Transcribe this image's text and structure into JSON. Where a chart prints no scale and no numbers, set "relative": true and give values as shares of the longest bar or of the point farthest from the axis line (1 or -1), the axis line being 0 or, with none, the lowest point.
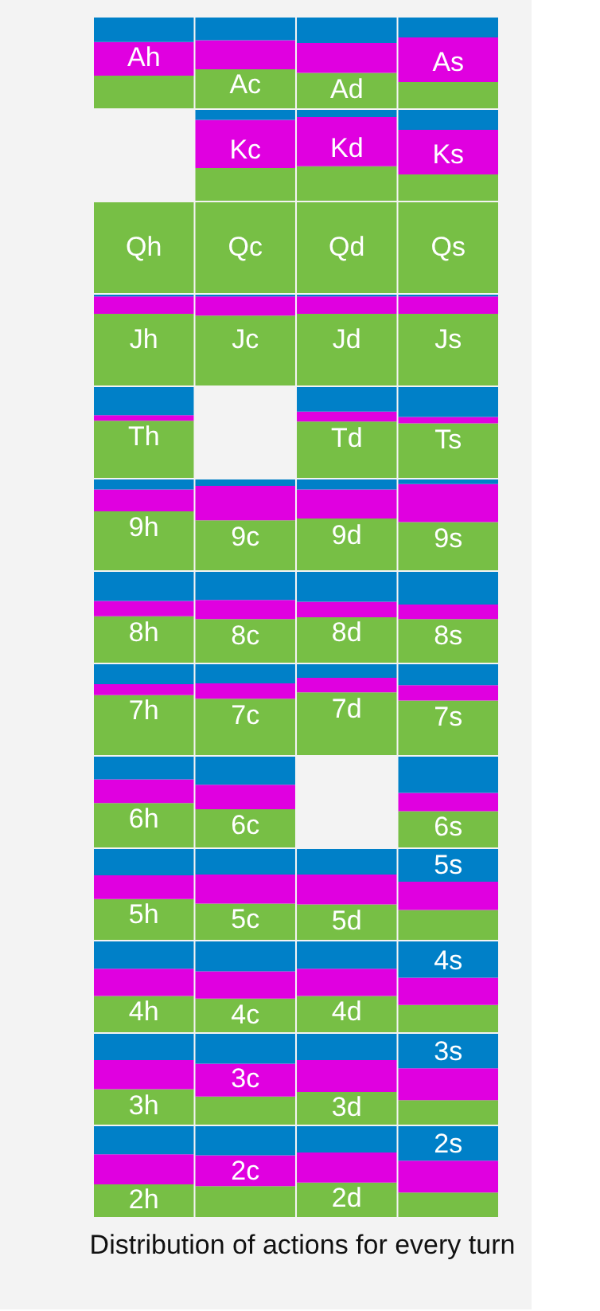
{
  "chart_data": [
    {
      "type": "bar",
      "stacked": true,
      "relative": true,
      "tick_labels": false,
      "legend": false,
      "grid": false,
      "categories": [
        "Ah",
        "Ac",
        "Ad",
        "As"
      ],
      "series": [
        {
          "color": "#77bf45",
          "values": [
            0.36,
            0.43,
            0.39,
            0.29
          ]
        },
        {
          "color": "#e000e0",
          "values": [
            0.37,
            0.32,
            0.33,
            0.49
          ]
        },
        {
          "color": "#0080c8",
          "values": [
            0.27,
            0.25,
            0.28,
            0.22
          ]
        }
      ]
    },
    {
      "type": "bar",
      "stacked": true,
      "relative": true,
      "tick_labels": false,
      "legend": false,
      "grid": false,
      "categories": [
        null,
        "Kc",
        "Kd",
        "Ks"
      ],
      "series": [
        {
          "color": "#77bf45",
          "values": [
            null,
            0.36,
            0.38,
            0.29
          ]
        },
        {
          "color": "#e000e0",
          "values": [
            null,
            0.53,
            0.54,
            0.49
          ]
        },
        {
          "color": "#0080c8",
          "values": [
            null,
            0.11,
            0.08,
            0.22
          ]
        }
      ]
    },
    {
      "type": "bar",
      "stacked": true,
      "relative": true,
      "tick_labels": false,
      "legend": false,
      "grid": false,
      "categories": [
        "Qh",
        "Qc",
        "Qd",
        "Qs"
      ],
      "series": [
        {
          "color": "#77bf45",
          "values": [
            1,
            1,
            1,
            1
          ]
        },
        {
          "color": "#e000e0",
          "values": [
            0,
            0,
            0,
            0
          ]
        },
        {
          "color": "#0080c8",
          "values": [
            0,
            0,
            0,
            0
          ]
        }
      ]
    },
    {
      "type": "bar",
      "stacked": true,
      "relative": true,
      "tick_labels": false,
      "legend": false,
      "grid": false,
      "categories": [
        "Jh",
        "Jc",
        "Jd",
        "Js"
      ],
      "series": [
        {
          "color": "#77bf45",
          "values": [
            0.79,
            0.77,
            0.79,
            0.79
          ]
        },
        {
          "color": "#e000e0",
          "values": [
            0.19,
            0.21,
            0.19,
            0.19
          ]
        },
        {
          "color": "#0080c8",
          "values": [
            0.02,
            0.02,
            0.02,
            0.02
          ]
        }
      ]
    },
    {
      "type": "bar",
      "stacked": true,
      "relative": true,
      "tick_labels": false,
      "legend": false,
      "grid": false,
      "categories": [
        "Th",
        null,
        "Td",
        "Ts"
      ],
      "series": [
        {
          "color": "#77bf45",
          "values": [
            0.63,
            null,
            0.62,
            0.6
          ]
        },
        {
          "color": "#e000e0",
          "values": [
            0.06,
            null,
            0.11,
            0.07
          ]
        },
        {
          "color": "#0080c8",
          "values": [
            0.31,
            null,
            0.27,
            0.33
          ]
        }
      ]
    },
    {
      "type": "bar",
      "stacked": true,
      "relative": true,
      "tick_labels": false,
      "legend": false,
      "grid": false,
      "categories": [
        "9h",
        "9c",
        "9d",
        "9s"
      ],
      "series": [
        {
          "color": "#77bf45",
          "values": [
            0.65,
            0.55,
            0.57,
            0.53
          ]
        },
        {
          "color": "#e000e0",
          "values": [
            0.24,
            0.38,
            0.32,
            0.42
          ]
        },
        {
          "color": "#0080c8",
          "values": [
            0.11,
            0.07,
            0.11,
            0.05
          ]
        }
      ]
    },
    {
      "type": "bar",
      "stacked": true,
      "relative": true,
      "tick_labels": false,
      "legend": false,
      "grid": false,
      "categories": [
        "8h",
        "8c",
        "8d",
        "8s"
      ],
      "series": [
        {
          "color": "#77bf45",
          "values": [
            0.51,
            0.48,
            0.5,
            0.48
          ]
        },
        {
          "color": "#e000e0",
          "values": [
            0.17,
            0.21,
            0.17,
            0.16
          ]
        },
        {
          "color": "#0080c8",
          "values": [
            0.32,
            0.31,
            0.33,
            0.36
          ]
        }
      ]
    },
    {
      "type": "bar",
      "stacked": true,
      "relative": true,
      "tick_labels": false,
      "legend": false,
      "grid": false,
      "categories": [
        "7h",
        "7c",
        "7d",
        "7s"
      ],
      "series": [
        {
          "color": "#77bf45",
          "values": [
            0.66,
            0.62,
            0.69,
            0.6
          ]
        },
        {
          "color": "#e000e0",
          "values": [
            0.12,
            0.17,
            0.16,
            0.17
          ]
        },
        {
          "color": "#0080c8",
          "values": [
            0.22,
            0.21,
            0.15,
            0.23
          ]
        }
      ]
    },
    {
      "type": "bar",
      "stacked": true,
      "relative": true,
      "tick_labels": false,
      "legend": false,
      "grid": false,
      "categories": [
        "6h",
        "6c",
        null,
        "6s"
      ],
      "series": [
        {
          "color": "#77bf45",
          "values": [
            0.49,
            0.42,
            null,
            0.4
          ]
        },
        {
          "color": "#e000e0",
          "values": [
            0.26,
            0.27,
            null,
            0.2
          ]
        },
        {
          "color": "#0080c8",
          "values": [
            0.25,
            0.31,
            null,
            0.4
          ]
        }
      ]
    },
    {
      "type": "bar",
      "stacked": true,
      "relative": true,
      "tick_labels": false,
      "legend": false,
      "grid": false,
      "categories": [
        "5h",
        "5c",
        "5d",
        "5s"
      ],
      "series": [
        {
          "color": "#77bf45",
          "values": [
            0.45,
            0.4,
            0.39,
            0.33
          ]
        },
        {
          "color": "#e000e0",
          "values": [
            0.26,
            0.32,
            0.33,
            0.31
          ]
        },
        {
          "color": "#0080c8",
          "values": [
            0.29,
            0.28,
            0.28,
            0.36
          ]
        }
      ]
    },
    {
      "type": "bar",
      "stacked": true,
      "relative": true,
      "tick_labels": false,
      "legend": false,
      "grid": false,
      "categories": [
        "4h",
        "4c",
        "4d",
        "4s"
      ],
      "series": [
        {
          "color": "#77bf45",
          "values": [
            0.4,
            0.37,
            0.4,
            0.3
          ]
        },
        {
          "color": "#e000e0",
          "values": [
            0.3,
            0.3,
            0.3,
            0.3
          ]
        },
        {
          "color": "#0080c8",
          "values": [
            0.3,
            0.33,
            0.3,
            0.4
          ]
        }
      ]
    },
    {
      "type": "bar",
      "stacked": true,
      "relative": true,
      "tick_labels": false,
      "legend": false,
      "grid": false,
      "categories": [
        "3h",
        "3c",
        "3d",
        "3s"
      ],
      "series": [
        {
          "color": "#77bf45",
          "values": [
            0.39,
            0.31,
            0.36,
            0.27
          ]
        },
        {
          "color": "#e000e0",
          "values": [
            0.32,
            0.36,
            0.35,
            0.35
          ]
        },
        {
          "color": "#0080c8",
          "values": [
            0.29,
            0.33,
            0.29,
            0.38
          ]
        }
      ]
    },
    {
      "type": "bar",
      "stacked": true,
      "relative": true,
      "tick_labels": false,
      "legend": false,
      "grid": false,
      "categories": [
        "2h",
        "2c",
        "2d",
        "2s"
      ],
      "annotations": [
        "Distribution of actions for every turn"
      ],
      "series": [
        {
          "color": "#77bf45",
          "values": [
            0.36,
            0.34,
            0.38,
            0.27
          ]
        },
        {
          "color": "#e000e0",
          "values": [
            0.33,
            0.34,
            0.33,
            0.35
          ]
        },
        {
          "color": "#0080c8",
          "values": [
            0.31,
            0.32,
            0.29,
            0.38
          ]
        }
      ]
    }
  ]
}
